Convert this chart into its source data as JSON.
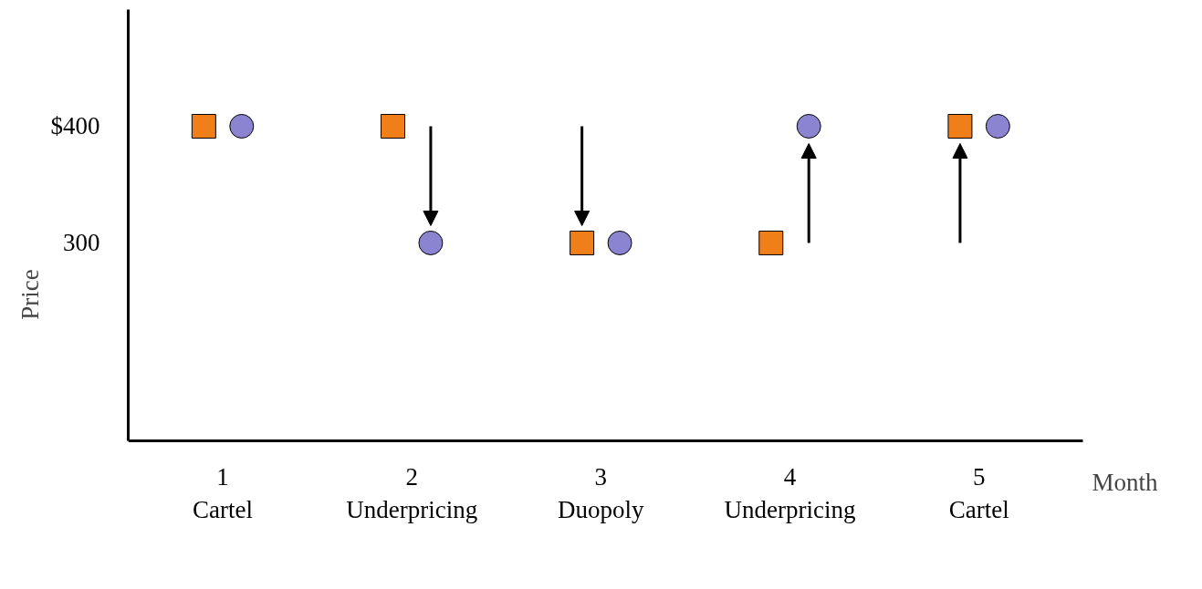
{
  "chart_data": {
    "type": "scatter",
    "categories": [
      "1\nCartel",
      "2\nUnderpricing",
      "3\nDuopoly",
      "4\nUnderpricing",
      "5\nCartel"
    ],
    "xlabel": "Month",
    "ylabel": "Price",
    "series": [
      {
        "color": "#f07f1a",
        "marker": "square",
        "values": [
          400,
          400,
          300,
          300,
          400
        ]
      },
      {
        "color": "#8b84d1",
        "marker": "circle",
        "values": [
          400,
          300,
          300,
          400,
          400
        ]
      }
    ],
    "ylim": [
      130,
      500
    ],
    "yticks": [
      {
        "value": 400,
        "label": "$400"
      },
      300
    ],
    "grid": false
  }
}
